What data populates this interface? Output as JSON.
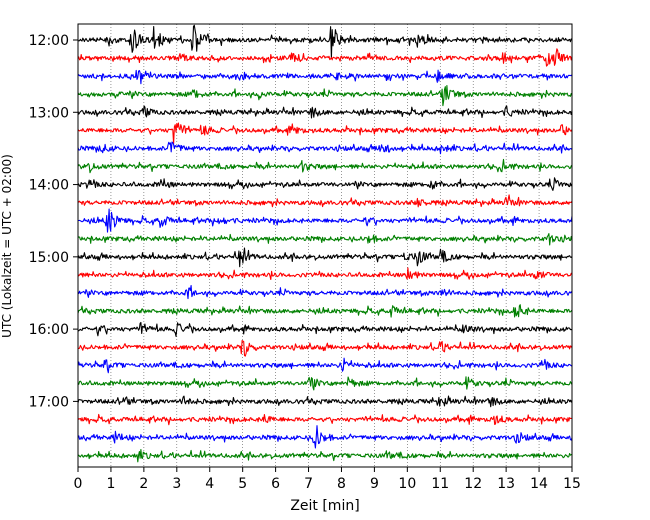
{
  "chart_data": {
    "type": "line",
    "title": "",
    "xlabel": "Zeit  [min]",
    "ylabel": "UTC (Lokalzeit = UTC + 02:00)",
    "xlim": [
      0,
      15
    ],
    "x_ticks": [
      "0",
      "1",
      "2",
      "3",
      "4",
      "5",
      "6",
      "7",
      "8",
      "9",
      "10",
      "11",
      "12",
      "13",
      "14",
      "15"
    ],
    "y_tick_labels": [
      "12:00",
      "13:00",
      "14:00",
      "15:00",
      "16:00",
      "17:00"
    ],
    "row_start": "12:00",
    "row_duration_min": 15,
    "grid": "vertical dotted",
    "row_colors": [
      "#000000",
      "#ff0000",
      "#0000ff",
      "#008000"
    ],
    "series": [
      {
        "start": "12:00",
        "color": "#000000",
        "events": [
          {
            "t": 1.6,
            "a": 1.0
          },
          {
            "t": 2.3,
            "a": 0.8
          },
          {
            "t": 3.5,
            "a": 1.1
          },
          {
            "t": 7.7,
            "a": 1.2
          },
          {
            "t": 0.9,
            "a": 0.3
          },
          {
            "t": 10.3,
            "a": 0.4
          }
        ]
      },
      {
        "start": "12:15",
        "color": "#ff0000",
        "events": [
          {
            "t": 6.5,
            "a": 0.4
          },
          {
            "t": 14.2,
            "a": 0.5
          },
          {
            "t": 14.5,
            "a": 0.5
          },
          {
            "t": 12.9,
            "a": 0.3
          },
          {
            "t": 3.1,
            "a": 0.2
          }
        ]
      },
      {
        "start": "12:30",
        "color": "#0000ff",
        "events": [
          {
            "t": 7.7,
            "a": 0.6
          },
          {
            "t": 1.8,
            "a": 0.4
          },
          {
            "t": 4.9,
            "a": 0.3
          },
          {
            "t": 10.9,
            "a": 0.3
          }
        ]
      },
      {
        "start": "12:45",
        "color": "#008000",
        "events": [
          {
            "t": 11.1,
            "a": 0.8
          },
          {
            "t": 3.5,
            "a": 0.3
          },
          {
            "t": 5.5,
            "a": 0.2
          }
        ]
      },
      {
        "start": "13:00",
        "color": "#000000",
        "events": [
          {
            "t": 2.0,
            "a": 0.3
          },
          {
            "t": 7.1,
            "a": 0.3
          },
          {
            "t": 13.0,
            "a": 0.3
          }
        ]
      },
      {
        "start": "13:15",
        "color": "#ff0000",
        "events": [
          {
            "t": 2.9,
            "a": 0.9
          },
          {
            "t": 3.8,
            "a": 0.3
          },
          {
            "t": 6.5,
            "a": 0.3
          },
          {
            "t": 14.7,
            "a": 0.3
          }
        ]
      },
      {
        "start": "13:30",
        "color": "#0000ff",
        "events": [
          {
            "t": 2.8,
            "a": 0.5
          },
          {
            "t": 0.7,
            "a": 0.3
          },
          {
            "t": 9.2,
            "a": 0.4
          },
          {
            "t": 11.0,
            "a": 0.3
          }
        ]
      },
      {
        "start": "13:45",
        "color": "#008000",
        "events": [
          {
            "t": 0.3,
            "a": 0.3
          },
          {
            "t": 6.8,
            "a": 0.3
          },
          {
            "t": 12.8,
            "a": 0.3
          }
        ]
      },
      {
        "start": "14:00",
        "color": "#000000",
        "events": [
          {
            "t": 0.3,
            "a": 0.3
          },
          {
            "t": 2.5,
            "a": 0.3
          },
          {
            "t": 10.7,
            "a": 0.3
          },
          {
            "t": 14.4,
            "a": 0.3
          }
        ]
      },
      {
        "start": "14:15",
        "color": "#ff0000",
        "events": [
          {
            "t": 10.3,
            "a": 0.3
          },
          {
            "t": 13.0,
            "a": 0.3
          }
        ]
      },
      {
        "start": "14:30",
        "color": "#0000ff",
        "events": [
          {
            "t": 0.9,
            "a": 0.9
          },
          {
            "t": 2.5,
            "a": 0.4
          },
          {
            "t": 4.3,
            "a": 0.3
          },
          {
            "t": 8.7,
            "a": 0.3
          }
        ]
      },
      {
        "start": "14:45",
        "color": "#008000",
        "events": [
          {
            "t": 8.8,
            "a": 0.3
          },
          {
            "t": 14.3,
            "a": 0.3
          }
        ]
      },
      {
        "start": "15:00",
        "color": "#000000",
        "events": [
          {
            "t": 4.9,
            "a": 0.6
          },
          {
            "t": 10.3,
            "a": 0.5
          },
          {
            "t": 11.0,
            "a": 0.4
          },
          {
            "t": 9.9,
            "a": 0.3
          }
        ]
      },
      {
        "start": "15:15",
        "color": "#ff0000",
        "events": [
          {
            "t": 10.0,
            "a": 0.4
          },
          {
            "t": 13.9,
            "a": 0.3
          }
        ]
      },
      {
        "start": "15:30",
        "color": "#0000ff",
        "events": [
          {
            "t": 3.3,
            "a": 0.3
          },
          {
            "t": 11.0,
            "a": 0.3
          }
        ]
      },
      {
        "start": "15:45",
        "color": "#008000",
        "events": [
          {
            "t": 13.3,
            "a": 0.6
          },
          {
            "t": 9.5,
            "a": 0.3
          }
        ]
      },
      {
        "start": "16:00",
        "color": "#000000",
        "events": [
          {
            "t": 3.0,
            "a": 0.5
          },
          {
            "t": 1.9,
            "a": 0.3
          },
          {
            "t": 0.6,
            "a": 0.3
          },
          {
            "t": 11.7,
            "a": 0.3
          }
        ]
      },
      {
        "start": "16:15",
        "color": "#ff0000",
        "events": [
          {
            "t": 5.0,
            "a": 0.6
          },
          {
            "t": 11.0,
            "a": 0.3
          }
        ]
      },
      {
        "start": "16:30",
        "color": "#0000ff",
        "events": [
          {
            "t": 8.0,
            "a": 0.5
          },
          {
            "t": 14.1,
            "a": 0.3
          },
          {
            "t": 0.8,
            "a": 0.3
          }
        ]
      },
      {
        "start": "16:45",
        "color": "#008000",
        "events": [
          {
            "t": 7.0,
            "a": 0.4
          },
          {
            "t": 8.2,
            "a": 0.3
          },
          {
            "t": 11.8,
            "a": 0.3
          }
        ]
      },
      {
        "start": "17:00",
        "color": "#000000",
        "events": [
          {
            "t": 1.3,
            "a": 0.3
          },
          {
            "t": 3.2,
            "a": 0.3
          },
          {
            "t": 11.0,
            "a": 0.3
          },
          {
            "t": 12.5,
            "a": 0.3
          }
        ]
      },
      {
        "start": "17:15",
        "color": "#ff0000",
        "events": [
          {
            "t": 5.6,
            "a": 0.3
          },
          {
            "t": 12.6,
            "a": 0.4
          }
        ]
      },
      {
        "start": "17:30",
        "color": "#0000ff",
        "events": [
          {
            "t": 7.2,
            "a": 0.9
          },
          {
            "t": 1.1,
            "a": 0.3
          },
          {
            "t": 13.3,
            "a": 0.3
          }
        ]
      },
      {
        "start": "17:45",
        "color": "#008000",
        "events": [
          {
            "t": 1.8,
            "a": 0.3
          },
          {
            "t": 9.4,
            "a": 0.2
          }
        ]
      }
    ]
  }
}
